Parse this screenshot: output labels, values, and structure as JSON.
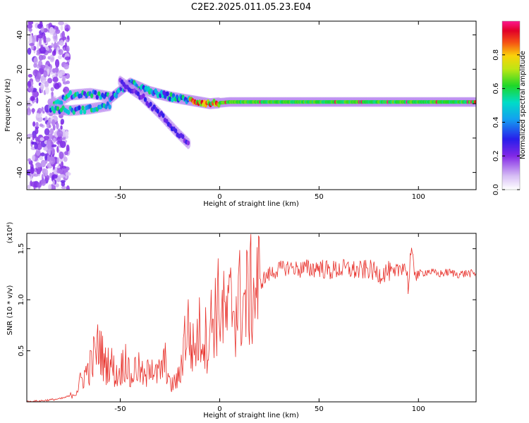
{
  "title": "C2E2.2025.011.05.23.E04",
  "chart_data": [
    {
      "type": "heatmap",
      "xlabel": "Height of straight line (km)",
      "ylabel": "Frequency (Hz)",
      "xlim": [
        -97,
        129
      ],
      "ylim": [
        -50,
        48
      ],
      "xticks": [
        -50,
        0,
        50,
        100
      ],
      "yticks": [
        -40,
        -20,
        0,
        20,
        40
      ],
      "ridges": [
        {
          "x": [
            -85,
            -75,
            -65,
            -55
          ],
          "y": [
            -2,
            5,
            6,
            4
          ]
        },
        {
          "x": [
            -85,
            -75,
            -65,
            -55
          ],
          "y": [
            -3,
            -4,
            -3,
            -1
          ]
        },
        {
          "x": [
            -55,
            -45,
            -35,
            -25,
            -15,
            -5,
            5,
            15,
            30,
            60,
            90,
            129
          ],
          "y": [
            3,
            12,
            7,
            4,
            2,
            0,
            1,
            1,
            1,
            1,
            1,
            1
          ]
        },
        {
          "x": [
            -50,
            -40,
            -30,
            -22,
            -15
          ],
          "y": [
            13,
            5,
            -6,
            -16,
            -24
          ]
        }
      ],
      "colorbar": {
        "label": "Normalized spectral amplitude",
        "ticks": [
          0.0,
          0.2,
          0.4,
          0.6,
          0.8
        ],
        "range": [
          0,
          1
        ]
      }
    },
    {
      "type": "line",
      "xlabel": "Height of straight line (km)",
      "ylabel": "SNR (10 * v/v)",
      "scale_label": "(x10⁴)",
      "xlim": [
        -97,
        129
      ],
      "ylim": [
        0,
        1.65
      ],
      "xticks": [
        -50,
        0,
        50,
        100
      ],
      "yticks": [
        0.5,
        1.0,
        1.5
      ],
      "color": "#e8322c",
      "series": [
        {
          "name": "",
          "x": [
            -97,
            -90,
            -85,
            -80,
            -75,
            -72,
            -70,
            -65,
            -62,
            -60,
            -58,
            -55,
            -52,
            -50,
            -47,
            -45,
            -42,
            -40,
            -37,
            -35,
            -32,
            -30,
            -27,
            -25,
            -22,
            -20,
            -18,
            -16,
            -14,
            -12,
            -10,
            -8,
            -6,
            -4,
            -2,
            0,
            2,
            4,
            6,
            8,
            10,
            12,
            15,
            18,
            20,
            22,
            25,
            28,
            30,
            35,
            40,
            45,
            50,
            55,
            60,
            65,
            70,
            75,
            80,
            85,
            88,
            90,
            92,
            94,
            95,
            96,
            98,
            100,
            105,
            110,
            115,
            120,
            125,
            129
          ],
          "y": [
            0.0,
            0.01,
            0.02,
            0.03,
            0.06,
            0.1,
            0.2,
            0.35,
            0.5,
            0.55,
            0.35,
            0.4,
            0.25,
            0.3,
            0.45,
            0.2,
            0.35,
            0.3,
            0.2,
            0.45,
            0.25,
            0.3,
            0.4,
            0.15,
            0.2,
            0.25,
            0.6,
            0.75,
            0.5,
            0.55,
            0.7,
            0.65,
            0.6,
            0.8,
            0.9,
            0.95,
            0.85,
            0.8,
            1.0,
            0.9,
            1.0,
            0.95,
            1.05,
            1.1,
            1.15,
            1.2,
            1.25,
            1.28,
            1.3,
            1.32,
            1.3,
            1.3,
            1.32,
            1.28,
            1.3,
            1.3,
            1.28,
            1.3,
            1.25,
            1.28,
            1.22,
            1.3,
            1.35,
            1.3,
            1.1,
            1.45,
            1.3,
            1.25,
            1.28,
            1.25,
            1.27,
            1.25,
            1.26,
            1.25
          ]
        }
      ]
    }
  ]
}
